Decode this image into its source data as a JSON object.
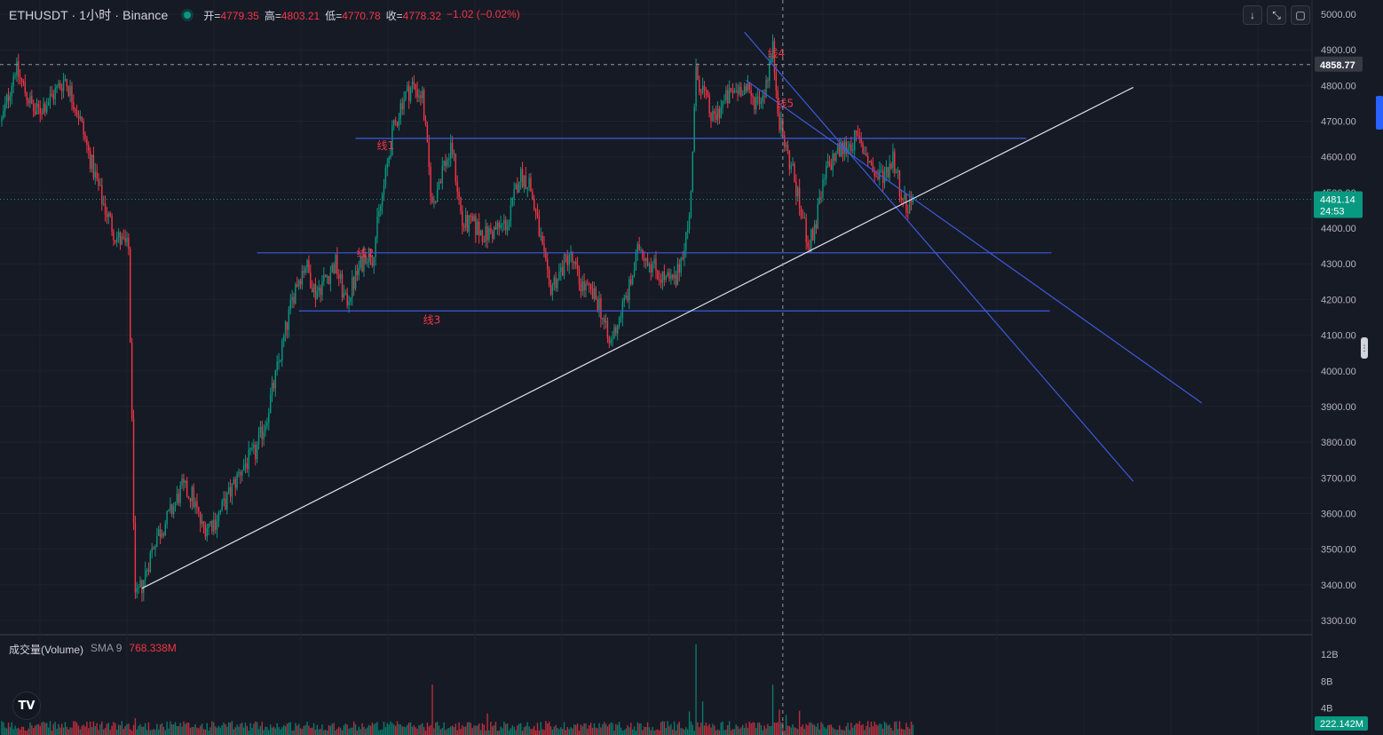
{
  "header": {
    "title": "ETHUSDT · 1小时 · Binance",
    "open_label": "开=",
    "open": "4779.35",
    "high_label": "高=",
    "high": "4803.21",
    "low_label": "低=",
    "low": "4770.78",
    "close_label": "收=",
    "close": "4778.32",
    "change": "−1.02 (−0.02%)"
  },
  "toolbar": {
    "down_icon": "arrow-down-icon",
    "fullscreen_icon": "fullscreen-icon",
    "screenshot_icon": "screenshot-icon"
  },
  "volume_panel": {
    "name": "成交量(Volume)",
    "sma": "SMA 9",
    "value": "768.338M",
    "current_badge": "222.142M"
  },
  "price_badges": {
    "crosshair_price": "4858.77",
    "last_price": "4481.14",
    "countdown": "24:53"
  },
  "colors": {
    "background": "#161a25",
    "up": "#089981",
    "down": "#f23645",
    "trendline_blue": "#3b5bdb",
    "support_white": "#e0e3eb",
    "label_red": "#f23645"
  },
  "chart_data": {
    "type": "candlestick",
    "symbol": "ETHUSDT",
    "interval": "1小时",
    "exchange": "Binance",
    "y_axis": {
      "price_ticks": [
        5000,
        4900,
        4800,
        4700,
        4600,
        4500,
        4400,
        4300,
        4200,
        4100,
        4000,
        3900,
        3800,
        3700,
        3600,
        3500,
        3400,
        3300
      ],
      "price_tick_labels": [
        "5000.00",
        "4900.00",
        "4800.00",
        "4700.00",
        "4600.00",
        "4500.00",
        "4400.00",
        "4300.00",
        "4200.00",
        "4100.00",
        "4000.00",
        "3900.00",
        "3800.00",
        "3700.00",
        "3600.00",
        "3500.00",
        "3400.00",
        "3300.00"
      ],
      "ylim": [
        3260,
        5040
      ],
      "volume_tick_labels": [
        "12B",
        "8B",
        "4B"
      ],
      "volume_ticks": [
        12,
        8,
        4
      ],
      "volume_ylim": [
        0,
        14
      ]
    },
    "price_path": [
      [
        0,
        4700
      ],
      [
        8,
        4850
      ],
      [
        20,
        4720
      ],
      [
        30,
        4770
      ],
      [
        38,
        4820
      ],
      [
        46,
        4720
      ],
      [
        52,
        4610
      ],
      [
        60,
        4480
      ],
      [
        68,
        4380
      ],
      [
        76,
        4340
      ],
      [
        80,
        3350
      ],
      [
        84,
        3400
      ],
      [
        92,
        3530
      ],
      [
        100,
        3590
      ],
      [
        108,
        3670
      ],
      [
        114,
        3650
      ],
      [
        120,
        3560
      ],
      [
        128,
        3580
      ],
      [
        136,
        3650
      ],
      [
        144,
        3730
      ],
      [
        152,
        3770
      ],
      [
        158,
        3860
      ],
      [
        164,
        3980
      ],
      [
        170,
        4110
      ],
      [
        176,
        4240
      ],
      [
        182,
        4300
      ],
      [
        188,
        4220
      ],
      [
        194,
        4260
      ],
      [
        200,
        4300
      ],
      [
        206,
        4190
      ],
      [
        212,
        4260
      ],
      [
        218,
        4330
      ],
      [
        222,
        4320
      ],
      [
        228,
        4490
      ],
      [
        234,
        4660
      ],
      [
        240,
        4760
      ],
      [
        246,
        4800
      ],
      [
        252,
        4770
      ],
      [
        258,
        4460
      ],
      [
        264,
        4570
      ],
      [
        270,
        4620
      ],
      [
        276,
        4410
      ],
      [
        282,
        4410
      ],
      [
        290,
        4380
      ],
      [
        298,
        4400
      ],
      [
        304,
        4420
      ],
      [
        310,
        4550
      ],
      [
        316,
        4530
      ],
      [
        322,
        4390
      ],
      [
        328,
        4230
      ],
      [
        334,
        4270
      ],
      [
        340,
        4330
      ],
      [
        346,
        4250
      ],
      [
        352,
        4220
      ],
      [
        358,
        4190
      ],
      [
        364,
        4070
      ],
      [
        370,
        4150
      ],
      [
        376,
        4230
      ],
      [
        382,
        4350
      ],
      [
        388,
        4310
      ],
      [
        394,
        4270
      ],
      [
        400,
        4250
      ],
      [
        404,
        4250
      ],
      [
        408,
        4340
      ],
      [
        412,
        4420
      ],
      [
        416,
        4830
      ],
      [
        420,
        4790
      ],
      [
        426,
        4700
      ],
      [
        432,
        4750
      ],
      [
        438,
        4780
      ],
      [
        444,
        4800
      ],
      [
        450,
        4760
      ],
      [
        456,
        4770
      ],
      [
        462,
        4900
      ],
      [
        466,
        4700
      ],
      [
        470,
        4620
      ],
      [
        474,
        4560
      ],
      [
        478,
        4460
      ],
      [
        484,
        4350
      ],
      [
        488,
        4420
      ],
      [
        494,
        4560
      ],
      [
        500,
        4610
      ],
      [
        506,
        4630
      ],
      [
        512,
        4650
      ],
      [
        518,
        4610
      ],
      [
        524,
        4540
      ],
      [
        530,
        4560
      ],
      [
        534,
        4600
      ],
      [
        538,
        4520
      ],
      [
        542,
        4460
      ],
      [
        546,
        4480
      ]
    ],
    "price_path_note_x": "bar index",
    "volume_spikes": [
      [
        80,
        2.5
      ],
      [
        258,
        7.5
      ],
      [
        291,
        3.2
      ],
      [
        412,
        3.5
      ],
      [
        416,
        13.5
      ],
      [
        420,
        5.0
      ],
      [
        462,
        7.5
      ],
      [
        466,
        3.8
      ],
      [
        470,
        3.0
      ],
      [
        478,
        3.6
      ]
    ],
    "volume_base": 1.6,
    "bar_count": 547,
    "last_price": 4481.14,
    "crosshair_price": 4858.77,
    "crosshair_bar": 468,
    "drawings": [
      {
        "type": "horizontal",
        "label": "线1",
        "price": 4652,
        "from_bar": 212,
        "to_bar": 614,
        "color": "#3b5bdb"
      },
      {
        "type": "horizontal",
        "label": "线2",
        "price": 4331,
        "from_bar": 153,
        "to_bar": 629,
        "color": "#3b5bdb"
      },
      {
        "type": "horizontal",
        "label": "线3",
        "price": 4168,
        "from_bar": 178,
        "to_bar": 628,
        "color": "#3b5bdb"
      },
      {
        "type": "trend",
        "label": "线4",
        "from": [
          445,
          4950
        ],
        "to": [
          678,
          3690
        ],
        "color": "#3b5bdb"
      },
      {
        "type": "trend",
        "label": "线5",
        "from": [
          446,
          4815
        ],
        "to": [
          719,
          3910
        ],
        "color": "#3b5bdb"
      },
      {
        "type": "trend",
        "label": "",
        "from": [
          84,
          3390
        ],
        "to": [
          678,
          4795
        ],
        "color": "#e0e3eb"
      }
    ],
    "label_positions_note": "labels drawn near each drawing",
    "grid": true,
    "legend": "top-left"
  }
}
